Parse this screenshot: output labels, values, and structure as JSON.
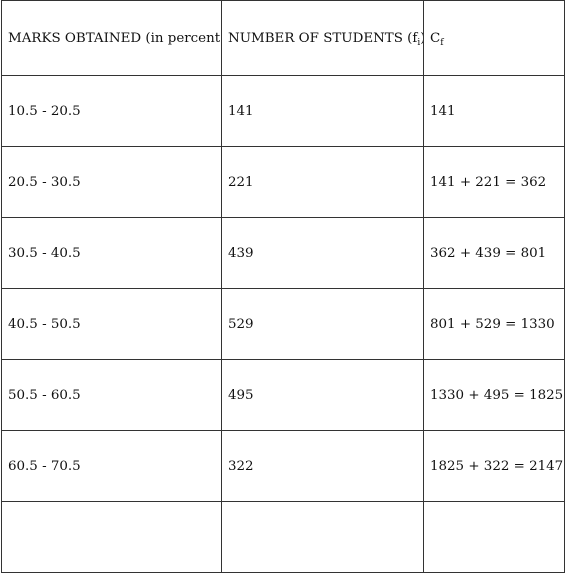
{
  "table": {
    "headers": {
      "marks": "MARKS OBTAINED (in percent)",
      "students_prefix": "NUMBER OF STUDENTS (f",
      "students_sub": "i",
      "students_suffix": ")",
      "cf_base": "C",
      "cf_sub": "f"
    },
    "rows": [
      {
        "marks": "10.5 - 20.5",
        "students": "141",
        "cf": "141"
      },
      {
        "marks": "20.5 - 30.5",
        "students": "221",
        "cf": "141 + 221 = 362"
      },
      {
        "marks": "30.5 - 40.5",
        "students": "439",
        "cf": "362 + 439 = 801"
      },
      {
        "marks": "40.5 - 50.5",
        "students": "529",
        "cf": "801 + 529 = 1330"
      },
      {
        "marks": "50.5 - 60.5",
        "students": "495",
        "cf": "1330 + 495 = 1825"
      },
      {
        "marks": "60.5 - 70.5",
        "students": "322",
        "cf": "1825 + 322 = 2147"
      }
    ]
  }
}
